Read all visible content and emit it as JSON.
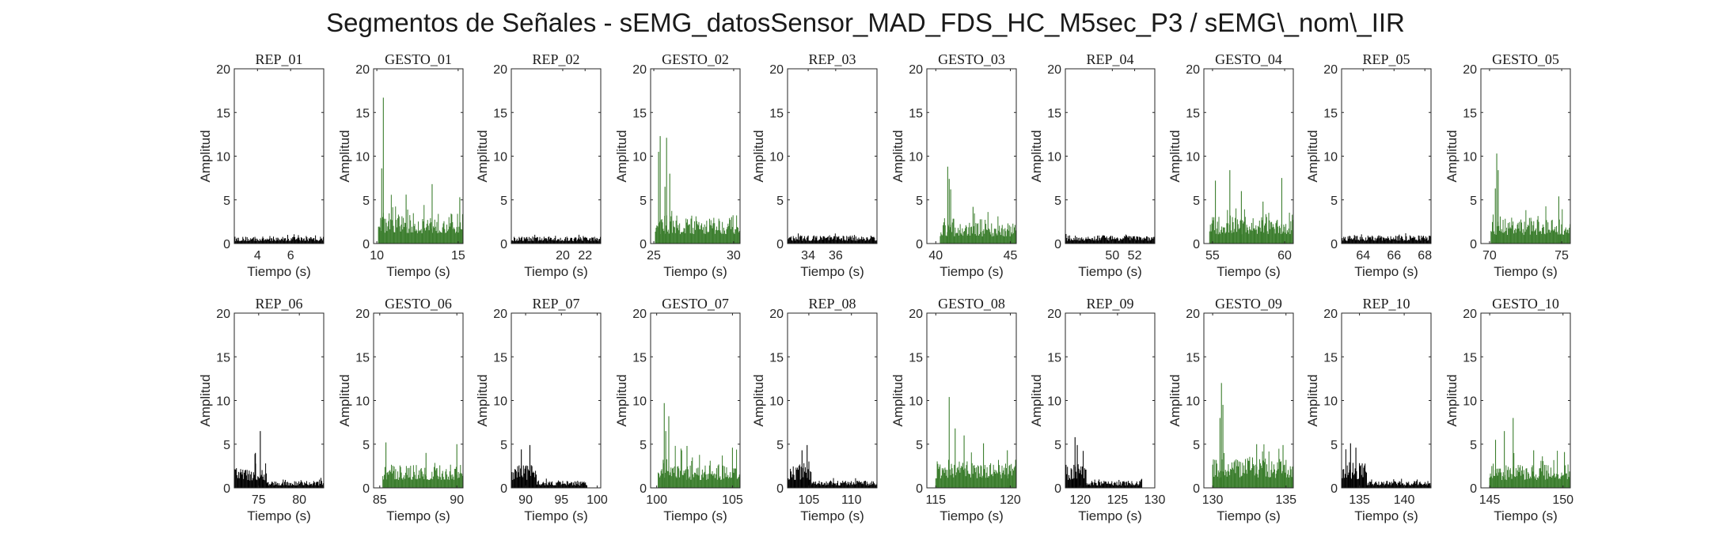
{
  "figure_title": "Segmentos de Señales - sEMG_datosSensor_MAD_FDS_HC_M5sec_P3 / sEMG\\_nom\\_IIR",
  "colors": {
    "rep": "#000000",
    "gesto": "#3a7d2c",
    "axis": "#262626"
  },
  "chart_data": [
    {
      "type": "bar",
      "title": "REP_01",
      "xlabel": "Tiempo (s)",
      "ylabel": "Amplitud",
      "xlim": [
        2.6,
        8.0
      ],
      "ylim": [
        0,
        20
      ],
      "xticks": [
        4,
        6
      ],
      "yticks": [
        0,
        5,
        10,
        15,
        20
      ],
      "color": "#000000",
      "segments": [
        {
          "x0": 2.6,
          "x1": 8.0,
          "level": 0.6,
          "peak": 1.0
        }
      ]
    },
    {
      "type": "bar",
      "title": "GESTO_01",
      "xlabel": "Tiempo (s)",
      "ylabel": "Amplitud",
      "xlim": [
        9.8,
        15.3
      ],
      "ylim": [
        0,
        20
      ],
      "xticks": [
        10,
        15
      ],
      "yticks": [
        0,
        5,
        10,
        15,
        20
      ],
      "color": "#3a7d2c",
      "segments": [
        {
          "x0": 10.1,
          "x1": 15.3,
          "level": 2.6,
          "peak": 5.5
        }
      ],
      "peaks": [
        [
          10.4,
          16.7
        ],
        [
          10.3,
          8.6
        ],
        [
          13.4,
          6.8
        ],
        [
          11.8,
          5.6
        ],
        [
          15.1,
          5.3
        ]
      ]
    },
    {
      "type": "bar",
      "title": "REP_02",
      "xlabel": "Tiempo (s)",
      "ylabel": "Amplitud",
      "xlim": [
        15.4,
        23.4
      ],
      "ylim": [
        0,
        20
      ],
      "xticks": [
        20,
        22
      ],
      "yticks": [
        0,
        5,
        10,
        15,
        20
      ],
      "color": "#000000",
      "segments": [
        {
          "x0": 15.4,
          "x1": 23.4,
          "level": 0.6,
          "peak": 1.0
        }
      ]
    },
    {
      "type": "bar",
      "title": "GESTO_02",
      "xlabel": "Tiempo (s)",
      "ylabel": "Amplitud",
      "xlim": [
        24.8,
        30.4
      ],
      "ylim": [
        0,
        20
      ],
      "xticks": [
        25,
        30
      ],
      "yticks": [
        0,
        5,
        10,
        15,
        20
      ],
      "color": "#3a7d2c",
      "segments": [
        {
          "x0": 25.1,
          "x1": 30.4,
          "level": 2.4,
          "peak": 4.5
        }
      ],
      "peaks": [
        [
          25.4,
          12.3
        ],
        [
          25.8,
          12.1
        ],
        [
          25.3,
          10.5
        ],
        [
          26.0,
          8.0
        ],
        [
          25.7,
          6.5
        ]
      ]
    },
    {
      "type": "bar",
      "title": "REP_03",
      "xlabel": "Tiempo (s)",
      "ylabel": "Amplitud",
      "xlim": [
        32.5,
        39.0
      ],
      "ylim": [
        0,
        20
      ],
      "xticks": [
        34,
        36
      ],
      "yticks": [
        0,
        5,
        10,
        15,
        20
      ],
      "color": "#000000",
      "segments": [
        {
          "x0": 32.5,
          "x1": 39.0,
          "level": 0.7,
          "peak": 1.1
        }
      ]
    },
    {
      "type": "bar",
      "title": "GESTO_03",
      "xlabel": "Tiempo (s)",
      "ylabel": "Amplitud",
      "xlim": [
        39.4,
        45.4
      ],
      "ylim": [
        0,
        20
      ],
      "xticks": [
        40,
        45
      ],
      "yticks": [
        0,
        5,
        10,
        15,
        20
      ],
      "color": "#3a7d2c",
      "segments": [
        {
          "x0": 40.3,
          "x1": 45.4,
          "level": 1.8,
          "peak": 4.0
        }
      ],
      "peaks": [
        [
          40.8,
          8.8
        ],
        [
          40.9,
          7.4
        ],
        [
          41.0,
          6.2
        ],
        [
          42.5,
          4.2
        ]
      ]
    },
    {
      "type": "bar",
      "title": "REP_04",
      "xlabel": "Tiempo (s)",
      "ylabel": "Amplitud",
      "xlim": [
        45.8,
        53.8
      ],
      "ylim": [
        0,
        20
      ],
      "xticks": [
        50,
        52
      ],
      "yticks": [
        0,
        5,
        10,
        15,
        20
      ],
      "color": "#000000",
      "segments": [
        {
          "x0": 45.8,
          "x1": 53.8,
          "level": 0.7,
          "peak": 1.2
        }
      ]
    },
    {
      "type": "bar",
      "title": "GESTO_04",
      "xlabel": "Tiempo (s)",
      "ylabel": "Amplitud",
      "xlim": [
        54.4,
        60.6
      ],
      "ylim": [
        0,
        20
      ],
      "xticks": [
        55,
        60
      ],
      "yticks": [
        0,
        5,
        10,
        15,
        20
      ],
      "color": "#3a7d2c",
      "segments": [
        {
          "x0": 54.8,
          "x1": 60.6,
          "level": 2.3,
          "peak": 5.0
        }
      ],
      "peaks": [
        [
          55.2,
          7.2
        ],
        [
          56.2,
          8.4
        ],
        [
          57.0,
          6.0
        ],
        [
          59.8,
          7.5
        ],
        [
          58.5,
          4.8
        ]
      ]
    },
    {
      "type": "bar",
      "title": "REP_05",
      "xlabel": "Tiempo (s)",
      "ylabel": "Amplitud",
      "xlim": [
        62.6,
        68.4
      ],
      "ylim": [
        0,
        20
      ],
      "xticks": [
        64,
        66,
        68
      ],
      "yticks": [
        0,
        5,
        10,
        15,
        20
      ],
      "color": "#000000",
      "segments": [
        {
          "x0": 62.6,
          "x1": 68.4,
          "level": 0.7,
          "peak": 1.3
        }
      ]
    },
    {
      "type": "bar",
      "title": "GESTO_05",
      "xlabel": "Tiempo (s)",
      "ylabel": "Amplitud",
      "xlim": [
        69.4,
        75.6
      ],
      "ylim": [
        0,
        20
      ],
      "xticks": [
        70,
        75
      ],
      "yticks": [
        0,
        5,
        10,
        15,
        20
      ],
      "color": "#3a7d2c",
      "segments": [
        {
          "x0": 70.1,
          "x1": 75.6,
          "level": 2.2,
          "peak": 4.3
        }
      ],
      "peaks": [
        [
          70.5,
          10.3
        ],
        [
          70.6,
          8.4
        ],
        [
          70.4,
          6.3
        ],
        [
          74.8,
          5.4
        ]
      ]
    },
    {
      "type": "bar",
      "title": "REP_06",
      "xlabel": "Tiempo (s)",
      "ylabel": "Amplitud",
      "xlim": [
        72.0,
        83.0
      ],
      "ylim": [
        0,
        20
      ],
      "xticks": [
        75,
        80
      ],
      "yticks": [
        0,
        5,
        10,
        15,
        20
      ],
      "color": "#000000",
      "segments": [
        {
          "x0": 72.0,
          "x1": 76.0,
          "level": 1.8,
          "peak": 3.5
        },
        {
          "x0": 76.0,
          "x1": 83.0,
          "level": 0.6,
          "peak": 1.0
        }
      ],
      "peaks": [
        [
          75.2,
          6.5
        ],
        [
          74.6,
          4.0
        ]
      ]
    },
    {
      "type": "bar",
      "title": "GESTO_06",
      "xlabel": "Tiempo (s)",
      "ylabel": "Amplitud",
      "xlim": [
        84.6,
        90.4
      ],
      "ylim": [
        0,
        20
      ],
      "xticks": [
        85,
        90
      ],
      "yticks": [
        0,
        5,
        10,
        15,
        20
      ],
      "color": "#3a7d2c",
      "segments": [
        {
          "x0": 85.2,
          "x1": 90.4,
          "level": 2.0,
          "peak": 3.8
        }
      ],
      "peaks": [
        [
          85.4,
          5.2
        ],
        [
          90.0,
          5.0
        ],
        [
          88.0,
          4.0
        ]
      ]
    },
    {
      "type": "bar",
      "title": "REP_07",
      "xlabel": "Tiempo (s)",
      "ylabel": "Amplitud",
      "xlim": [
        88.0,
        100.5
      ],
      "ylim": [
        0,
        20
      ],
      "xticks": [
        90,
        95,
        100
      ],
      "yticks": [
        0,
        5,
        10,
        15,
        20
      ],
      "color": "#000000",
      "segments": [
        {
          "x0": 88.0,
          "x1": 91.5,
          "level": 2.0,
          "peak": 4.0
        },
        {
          "x0": 91.5,
          "x1": 98.6,
          "level": 0.6,
          "peak": 1.0
        }
      ],
      "peaks": [
        [
          90.6,
          4.9
        ],
        [
          89.4,
          4.4
        ]
      ]
    },
    {
      "type": "bar",
      "title": "GESTO_07",
      "xlabel": "Tiempo (s)",
      "ylabel": "Amplitud",
      "xlim": [
        99.6,
        105.5
      ],
      "ylim": [
        0,
        20
      ],
      "xticks": [
        100,
        105
      ],
      "yticks": [
        0,
        5,
        10,
        15,
        20
      ],
      "color": "#3a7d2c",
      "segments": [
        {
          "x0": 100.1,
          "x1": 105.5,
          "level": 2.0,
          "peak": 4.5
        }
      ],
      "peaks": [
        [
          100.5,
          9.7
        ],
        [
          100.8,
          8.2
        ],
        [
          100.6,
          6.5
        ],
        [
          102.0,
          4.8
        ],
        [
          105.0,
          4.6
        ]
      ]
    },
    {
      "type": "bar",
      "title": "REP_08",
      "xlabel": "Tiempo (s)",
      "ylabel": "Amplitud",
      "xlim": [
        102.5,
        113.0
      ],
      "ylim": [
        0,
        20
      ],
      "xticks": [
        105,
        110
      ],
      "yticks": [
        0,
        5,
        10,
        15,
        20
      ],
      "color": "#000000",
      "segments": [
        {
          "x0": 102.5,
          "x1": 105.3,
          "level": 2.0,
          "peak": 3.8
        },
        {
          "x0": 105.3,
          "x1": 113.0,
          "level": 0.6,
          "peak": 1.0
        }
      ],
      "peaks": [
        [
          104.8,
          4.9
        ],
        [
          104.2,
          4.3
        ]
      ]
    },
    {
      "type": "bar",
      "title": "GESTO_08",
      "xlabel": "Tiempo (s)",
      "ylabel": "Amplitud",
      "xlim": [
        114.4,
        120.4
      ],
      "ylim": [
        0,
        20
      ],
      "xticks": [
        115,
        120
      ],
      "yticks": [
        0,
        5,
        10,
        15,
        20
      ],
      "color": "#3a7d2c",
      "segments": [
        {
          "x0": 115.0,
          "x1": 120.4,
          "level": 2.4,
          "peak": 4.5
        }
      ],
      "peaks": [
        [
          115.9,
          10.4
        ],
        [
          116.3,
          6.8
        ],
        [
          116.9,
          6.0
        ],
        [
          118.2,
          5.1
        ],
        [
          119.8,
          4.3
        ]
      ]
    },
    {
      "type": "bar",
      "title": "REP_09",
      "xlabel": "Tiempo (s)",
      "ylabel": "Amplitud",
      "xlim": [
        118.0,
        130.0
      ],
      "ylim": [
        0,
        20
      ],
      "xticks": [
        120,
        125,
        130
      ],
      "yticks": [
        0,
        5,
        10,
        15,
        20
      ],
      "color": "#000000",
      "segments": [
        {
          "x0": 118.0,
          "x1": 120.8,
          "level": 2.0,
          "peak": 3.8
        },
        {
          "x0": 120.8,
          "x1": 128.3,
          "level": 0.6,
          "peak": 1.0
        }
      ],
      "peaks": [
        [
          119.3,
          5.8
        ],
        [
          119.6,
          4.9
        ]
      ]
    },
    {
      "type": "bar",
      "title": "GESTO_09",
      "xlabel": "Tiempo (s)",
      "ylabel": "Amplitud",
      "xlim": [
        129.4,
        135.5
      ],
      "ylim": [
        0,
        20
      ],
      "xticks": [
        130,
        135
      ],
      "yticks": [
        0,
        5,
        10,
        15,
        20
      ],
      "color": "#3a7d2c",
      "segments": [
        {
          "x0": 130.0,
          "x1": 135.5,
          "level": 2.5,
          "peak": 4.8
        }
      ],
      "peaks": [
        [
          130.6,
          12.0
        ],
        [
          130.7,
          9.5
        ],
        [
          130.5,
          8.0
        ],
        [
          133.0,
          5.0
        ],
        [
          134.8,
          4.9
        ]
      ]
    },
    {
      "type": "bar",
      "title": "REP_10",
      "xlabel": "Tiempo (s)",
      "ylabel": "Amplitud",
      "xlim": [
        133.0,
        143.0
      ],
      "ylim": [
        0,
        20
      ],
      "xticks": [
        135,
        140
      ],
      "yticks": [
        0,
        5,
        10,
        15,
        20
      ],
      "color": "#000000",
      "segments": [
        {
          "x0": 133.0,
          "x1": 135.8,
          "level": 2.2,
          "peak": 4.0
        },
        {
          "x0": 135.8,
          "x1": 143.0,
          "level": 0.6,
          "peak": 1.0
        }
      ],
      "peaks": [
        [
          134.0,
          5.1
        ],
        [
          134.6,
          4.6
        ]
      ]
    },
    {
      "type": "bar",
      "title": "GESTO_10",
      "xlabel": "Tiempo (s)",
      "ylabel": "Amplitud",
      "xlim": [
        144.4,
        150.5
      ],
      "ylim": [
        0,
        20
      ],
      "xticks": [
        145,
        150
      ],
      "yticks": [
        0,
        5,
        10,
        15,
        20
      ],
      "color": "#3a7d2c",
      "segments": [
        {
          "x0": 145.0,
          "x1": 150.5,
          "level": 2.0,
          "peak": 4.0
        }
      ],
      "peaks": [
        [
          146.6,
          8.0
        ],
        [
          146.0,
          6.5
        ],
        [
          145.4,
          5.5
        ],
        [
          148.0,
          4.3
        ],
        [
          150.1,
          4.1
        ]
      ]
    }
  ]
}
